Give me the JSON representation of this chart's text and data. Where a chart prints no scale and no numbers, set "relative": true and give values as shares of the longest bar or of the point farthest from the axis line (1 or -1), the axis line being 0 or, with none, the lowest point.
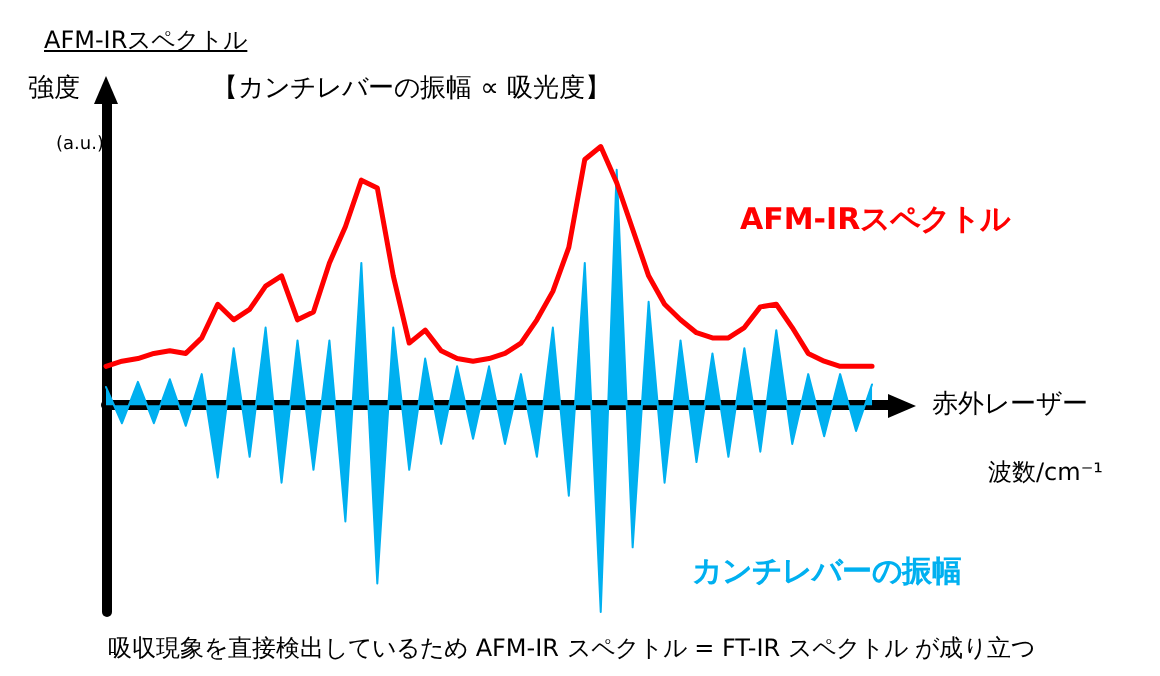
{
  "chart_data": {
    "type": "line",
    "relative": true,
    "title": "AFM-IRスペクトル",
    "subtitle": "【カンチレバーの振幅 ∝ 吸光度】",
    "ylabel": "強度",
    "xlabel": "赤外レーザー",
    "annotations": [
      "(a.u.)",
      "波数/cm⁻¹",
      "吸収現象を直接検出しているため AFM-IR スペクトル = FT-IR スペクトル が成り立つ"
    ],
    "categories": [
      null,
      null,
      null,
      null,
      null,
      null,
      null,
      null,
      null,
      null,
      null,
      null,
      null,
      null,
      null,
      null,
      null,
      null,
      null,
      null,
      null,
      null,
      null,
      null,
      null,
      null,
      null,
      null,
      null,
      null,
      null,
      null,
      null,
      null,
      null,
      null,
      null,
      null,
      null,
      null,
      null,
      null,
      null,
      null,
      null,
      null,
      null,
      null,
      null,
      null
    ],
    "series": [
      {
        "name": "カンチレバーの振幅",
        "type": "area",
        "color": "#00b0f0",
        "values": [
          0.07,
          -0.07,
          0.09,
          -0.07,
          0.1,
          -0.08,
          0.12,
          -0.28,
          0.22,
          -0.2,
          0.3,
          -0.3,
          0.25,
          -0.25,
          0.25,
          -0.45,
          0.55,
          -0.69,
          0.3,
          -0.25,
          0.18,
          -0.15,
          0.15,
          -0.13,
          0.15,
          -0.15,
          0.12,
          -0.2,
          0.3,
          -0.35,
          0.55,
          -0.8,
          0.91,
          -0.55,
          0.4,
          -0.3,
          0.25,
          -0.22,
          0.2,
          -0.2,
          0.22,
          -0.18,
          0.29,
          -0.15,
          0.12,
          -0.12,
          0.12,
          -0.1,
          0.08,
          null
        ]
      },
      {
        "name": "AFM-IRスペクトル",
        "color": "#ff0000",
        "values": [
          0.15,
          0.17,
          0.18,
          0.2,
          0.21,
          0.2,
          0.26,
          0.39,
          0.33,
          0.37,
          0.46,
          0.5,
          0.33,
          0.36,
          0.55,
          0.69,
          0.87,
          0.84,
          0.5,
          0.24,
          0.29,
          0.21,
          0.18,
          0.17,
          0.18,
          0.2,
          0.24,
          0.33,
          0.44,
          0.61,
          0.95,
          1,
          0.86,
          0.68,
          0.5,
          0.39,
          0.33,
          0.28,
          0.26,
          0.26,
          0.3,
          0.38,
          0.39,
          0.3,
          0.2,
          0.17,
          0.15,
          0.15,
          0.15,
          null
        ]
      }
    ],
    "grid": false,
    "legend": false,
    "marker": "none",
    "line_style": "solid"
  }
}
